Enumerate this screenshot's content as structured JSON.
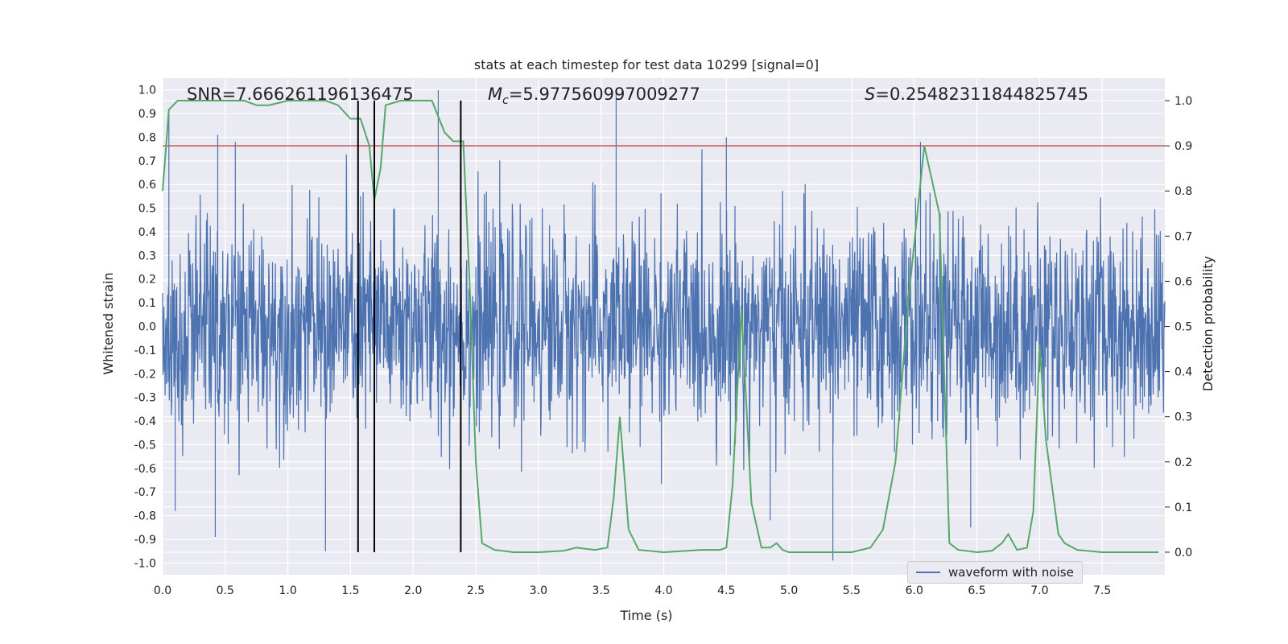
{
  "chart_data": {
    "type": "line",
    "title": "stats at each timestep for test data 10299 [signal=0]",
    "xlabel": "Time (s)",
    "ylabel_left": "Whitened strain",
    "ylabel_right": "Detection probability",
    "xlim": [
      0.0,
      8.0
    ],
    "ylim_left": [
      -1.05,
      1.05
    ],
    "ylim_right": [
      -0.05,
      1.05
    ],
    "x_ticks": [
      "0.0",
      "0.5",
      "1.0",
      "1.5",
      "2.0",
      "2.5",
      "3.0",
      "3.5",
      "4.0",
      "4.5",
      "5.0",
      "5.5",
      "6.0",
      "6.5",
      "7.0",
      "7.5"
    ],
    "y_left_ticks": [
      "-1.0",
      "-0.9",
      "-0.8",
      "-0.7",
      "-0.6",
      "-0.5",
      "-0.4",
      "-0.3",
      "-0.2",
      "-0.1",
      "0.0",
      "0.1",
      "0.2",
      "0.3",
      "0.4",
      "0.5",
      "0.6",
      "0.7",
      "0.8",
      "0.9",
      "1.0"
    ],
    "y_right_ticks": [
      "0.0",
      "0.1",
      "0.2",
      "0.3",
      "0.4",
      "0.5",
      "0.6",
      "0.7",
      "0.8",
      "0.9",
      "1.0"
    ],
    "annotations": {
      "snr": "SNR=7.666261196136475",
      "mc_symbol": "M",
      "mc_sub": "c",
      "mc_value": "=5.977560997009277",
      "s_symbol": "S",
      "s_value": "=0.25482311844825745"
    },
    "threshold": {
      "axis": "right",
      "value": 0.9,
      "color": "#c44e52"
    },
    "vertical_markers": [
      1.56,
      1.69,
      2.38
    ],
    "colors": {
      "waveform": "#4c72b0",
      "probability": "#55a868",
      "threshold": "#c44e52",
      "markers": "#000000",
      "background": "#eaeaf2"
    },
    "series": [
      {
        "name": "waveform with noise",
        "axis": "left",
        "description": "noise-dominated whitened strain, sampled densely from 0 to 8 s",
        "typical_amplitude": 0.4,
        "peaks": [
          {
            "x": 0.05,
            "y": 0.9
          },
          {
            "x": 0.44,
            "y": 0.81
          },
          {
            "x": 0.58,
            "y": 0.78
          },
          {
            "x": 1.58,
            "y": 0.55
          },
          {
            "x": 2.2,
            "y": 1.0
          },
          {
            "x": 3.62,
            "y": 0.99
          },
          {
            "x": 4.5,
            "y": 0.8
          },
          {
            "x": 6.05,
            "y": 0.78
          }
        ],
        "troughs": [
          {
            "x": 0.1,
            "y": -0.78
          },
          {
            "x": 0.42,
            "y": -0.89
          },
          {
            "x": 1.3,
            "y": -0.95
          },
          {
            "x": 4.85,
            "y": -0.82
          },
          {
            "x": 5.35,
            "y": -0.99
          },
          {
            "x": 6.45,
            "y": -0.85
          }
        ]
      },
      {
        "name": "detection probability",
        "axis": "right",
        "x": [
          0.0,
          0.05,
          0.12,
          0.3,
          0.5,
          0.65,
          0.75,
          0.85,
          1.0,
          1.15,
          1.3,
          1.4,
          1.5,
          1.58,
          1.65,
          1.69,
          1.74,
          1.78,
          1.9,
          2.0,
          2.15,
          2.25,
          2.32,
          2.4,
          2.45,
          2.5,
          2.55,
          2.65,
          2.8,
          3.0,
          3.2,
          3.3,
          3.45,
          3.55,
          3.6,
          3.65,
          3.72,
          3.8,
          4.0,
          4.3,
          4.45,
          4.5,
          4.55,
          4.62,
          4.7,
          4.78,
          4.85,
          4.9,
          4.95,
          5.0,
          5.2,
          5.5,
          5.65,
          5.75,
          5.85,
          5.95,
          6.08,
          6.2,
          6.28,
          6.35,
          6.5,
          6.62,
          6.7,
          6.75,
          6.82,
          6.9,
          6.95,
          7.0,
          7.05,
          7.15,
          7.2,
          7.3,
          7.5,
          7.75,
          7.95
        ],
        "y": [
          0.8,
          0.98,
          1.0,
          1.0,
          1.0,
          1.0,
          0.99,
          0.99,
          1.0,
          1.0,
          1.0,
          0.99,
          0.96,
          0.96,
          0.9,
          0.78,
          0.85,
          0.99,
          1.0,
          1.0,
          1.0,
          0.93,
          0.91,
          0.91,
          0.6,
          0.2,
          0.02,
          0.005,
          0.0,
          0.0,
          0.003,
          0.01,
          0.005,
          0.01,
          0.12,
          0.3,
          0.05,
          0.005,
          0.0,
          0.005,
          0.005,
          0.01,
          0.15,
          0.54,
          0.11,
          0.01,
          0.01,
          0.02,
          0.005,
          0.0,
          0.0,
          0.0,
          0.01,
          0.05,
          0.2,
          0.55,
          0.9,
          0.75,
          0.02,
          0.005,
          0.0,
          0.003,
          0.02,
          0.04,
          0.005,
          0.01,
          0.09,
          0.46,
          0.25,
          0.04,
          0.02,
          0.005,
          0.0,
          0.0,
          0.0
        ]
      }
    ]
  }
}
